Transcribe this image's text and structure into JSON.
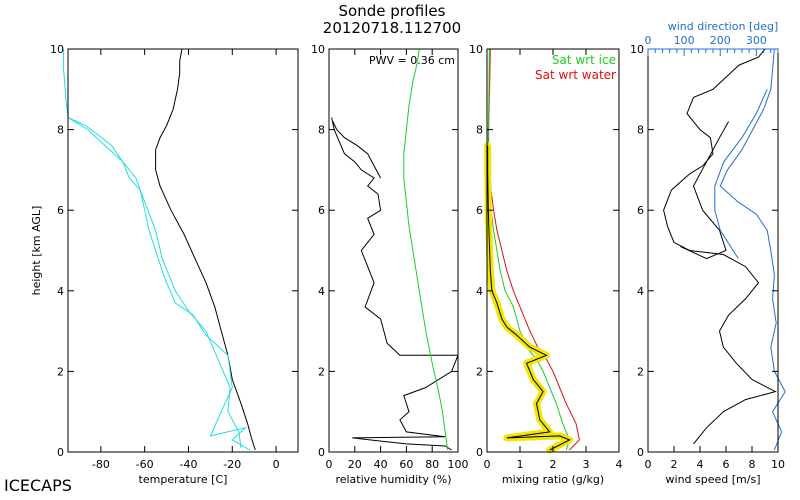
{
  "title_line1": "Sonde profiles",
  "title_line2": "20120718.112700",
  "footer_label": "ICECAPS",
  "colors": {
    "black": "#000000",
    "cyan": "#22dddd",
    "green": "#22cc22",
    "red": "#dd1111",
    "blue": "#1f6fd0",
    "highlight": "#f2e600"
  },
  "chart_data": [
    {
      "type": "line",
      "id": "temperature",
      "xlabel": "temperature [C]",
      "ylabel": "height [km AGL]",
      "xlim": [
        -95,
        10
      ],
      "ylim": [
        0,
        10
      ],
      "xticks": [
        -80,
        -60,
        -40,
        -20,
        0
      ],
      "yticks": [
        0,
        2,
        4,
        6,
        8,
        10
      ],
      "series": [
        {
          "color": "#000000",
          "x": [
            -9.5,
            -11,
            -13,
            -16,
            -20,
            -22,
            -25,
            -28,
            -32,
            -37,
            -42,
            -48,
            -53,
            -55,
            -55,
            -53,
            -50,
            -47,
            -45,
            -44,
            -44,
            -43
          ],
          "y": [
            0.05,
            0.3,
            0.7,
            1.2,
            1.8,
            2.4,
            3.0,
            3.6,
            4.2,
            4.8,
            5.4,
            6.0,
            6.6,
            7.0,
            7.5,
            7.8,
            8.1,
            8.5,
            9.0,
            9.4,
            9.7,
            10.0
          ]
        },
        {
          "color": "#22dddd",
          "x": [
            -12,
            -20,
            -14,
            -30,
            -25,
            -20,
            -22,
            -32,
            -38,
            -46,
            -50,
            -52,
            -55,
            -58,
            -60,
            -62,
            -67,
            -70,
            -75,
            -82,
            -87,
            -95,
            -96,
            -97,
            -97
          ],
          "y": [
            0.05,
            0.3,
            0.6,
            0.4,
            1.0,
            1.6,
            2.4,
            2.9,
            3.4,
            3.7,
            4.2,
            4.5,
            5.0,
            5.5,
            6.0,
            6.5,
            6.8,
            7.2,
            7.6,
            7.9,
            8.1,
            8.3,
            8.8,
            9.5,
            10.0
          ]
        },
        {
          "color": "#22dddd",
          "x": [
            -16,
            -17,
            -22,
            -21,
            -32,
            -40,
            -46,
            -52,
            -55,
            -60,
            -64,
            -70,
            -78,
            -86,
            -95
          ],
          "y": [
            0.1,
            0.5,
            1.0,
            1.6,
            3.0,
            3.5,
            4.0,
            4.8,
            5.5,
            6.2,
            6.8,
            7.2,
            7.6,
            8.0,
            8.3
          ]
        }
      ]
    },
    {
      "type": "line",
      "id": "relative_humidity",
      "xlabel": "relative humidity (%)",
      "annotation": "PWV = 0.36 cm",
      "xlim": [
        0,
        100
      ],
      "ylim": [
        0,
        10
      ],
      "xticks": [
        0,
        20,
        40,
        60,
        80,
        100
      ],
      "yticks": [
        0,
        2,
        4,
        6,
        8,
        10
      ],
      "series": [
        {
          "color": "#000000",
          "x": [
            95,
            90,
            60,
            18,
            90,
            60,
            55,
            62,
            58,
            75,
            95,
            100,
            55,
            45,
            40,
            28,
            35,
            30,
            25,
            35,
            30,
            40,
            38,
            30,
            35,
            25,
            20,
            12,
            8,
            4,
            2
          ],
          "y": [
            0.05,
            0.15,
            0.2,
            0.35,
            0.38,
            0.5,
            0.8,
            1.0,
            1.4,
            1.6,
            2.0,
            2.4,
            2.4,
            2.7,
            3.3,
            3.6,
            4.2,
            4.6,
            5.0,
            5.4,
            5.8,
            6.0,
            6.4,
            6.6,
            6.8,
            7.0,
            7.2,
            7.4,
            7.7,
            8.0,
            8.3
          ]
        },
        {
          "color": "#000000",
          "x": [
            40,
            35,
            30,
            22,
            12,
            6,
            3
          ],
          "y": [
            6.8,
            7.1,
            7.4,
            7.6,
            7.8,
            8.0,
            8.2
          ]
        },
        {
          "color": "#22cc22",
          "x": [
            92,
            90,
            88,
            85,
            80,
            75,
            72,
            68,
            65,
            62,
            60,
            58,
            58,
            60,
            62,
            65,
            68,
            70
          ],
          "y": [
            0.05,
            0.5,
            1.0,
            1.5,
            2.2,
            3.0,
            3.6,
            4.4,
            5.0,
            5.6,
            6.2,
            6.8,
            7.4,
            8.0,
            8.6,
            9.2,
            9.6,
            10.0
          ]
        }
      ]
    },
    {
      "type": "line",
      "id": "mixing_ratio",
      "xlabel": "mixing ratio (g/kg)",
      "xlim": [
        0,
        4
      ],
      "ylim": [
        0,
        10
      ],
      "xticks": [
        0,
        1,
        2,
        3,
        4
      ],
      "yticks": [
        0,
        2,
        4,
        6,
        8,
        10
      ],
      "legend": [
        {
          "label": "Sat wrt ice",
          "color": "#22cc22"
        },
        {
          "label": "Sat wrt water",
          "color": "#dd1111"
        }
      ],
      "series": [
        {
          "name": "Sat wrt water",
          "color": "#dd1111",
          "x": [
            2.5,
            2.8,
            2.7,
            2.4,
            2.2,
            2.0,
            1.8,
            1.6,
            1.3,
            1.0,
            0.8,
            0.6,
            0.45,
            0.3,
            0.2,
            0.12,
            0.08,
            0.05,
            0.05,
            0.06,
            0.08,
            0.1
          ],
          "y": [
            0.05,
            0.3,
            0.7,
            1.2,
            1.6,
            2.0,
            2.3,
            2.5,
            3.0,
            3.6,
            4.0,
            4.5,
            5.0,
            5.5,
            6.0,
            6.5,
            7.0,
            7.5,
            8.0,
            8.5,
            9.0,
            10.0
          ]
        },
        {
          "name": "Sat wrt ice",
          "color": "#22cc22",
          "x": [
            2.4,
            2.5,
            2.3,
            2.1,
            1.9,
            1.7,
            1.5,
            1.3,
            1.0,
            0.8,
            0.55,
            0.4,
            0.3,
            0.2,
            0.12,
            0.07,
            0.05,
            0.04,
            0.04,
            0.05,
            0.06,
            0.07
          ],
          "y": [
            0.05,
            0.3,
            0.7,
            1.2,
            1.6,
            2.0,
            2.3,
            2.5,
            3.0,
            3.6,
            4.0,
            4.5,
            5.0,
            5.5,
            6.0,
            6.5,
            7.0,
            7.5,
            8.0,
            8.5,
            9.0,
            10.0
          ]
        },
        {
          "name": "",
          "color": "#000000",
          "highlight": true,
          "x": [
            1.9,
            2.5,
            2.2,
            0.6,
            1.9,
            1.6,
            1.5,
            1.7,
            1.4,
            1.2,
            1.8,
            1.3,
            0.9,
            0.6,
            0.45,
            0.3,
            0.15,
            0.1,
            0.08,
            0.04,
            0.02,
            0.02
          ],
          "y": [
            0.05,
            0.3,
            0.4,
            0.35,
            0.5,
            0.8,
            1.2,
            1.5,
            1.8,
            2.2,
            2.4,
            2.6,
            2.9,
            3.1,
            3.3,
            3.7,
            4.0,
            4.5,
            5.0,
            6.0,
            7.0,
            7.6
          ]
        }
      ]
    },
    {
      "type": "line",
      "id": "wind",
      "xlabel": "wind speed [m/s]",
      "top_axis_label": "wind direction [deg]",
      "xlim": [
        0,
        10
      ],
      "top_xlim": [
        0,
        360
      ],
      "ylim": [
        0,
        10
      ],
      "xticks": [
        0,
        2,
        4,
        6,
        8,
        10
      ],
      "top_xticks": [
        0,
        100,
        200,
        300
      ],
      "yticks": [
        0,
        2,
        4,
        6,
        8,
        10
      ],
      "series": [
        {
          "color": "#000000",
          "axis": "speed",
          "x": [
            3.5,
            4.5,
            5.8,
            7.5,
            9.8,
            8.0,
            6.8,
            5.8,
            5.5,
            6.2,
            7.5,
            8.5,
            7.5,
            5.8,
            3.2,
            2.0,
            1.5,
            1.2,
            1.8,
            3.2,
            4.2,
            5.0,
            4.8,
            4.0,
            3.0,
            3.5,
            5.0,
            6.0,
            7.0,
            8.5,
            9.0
          ],
          "y": [
            0.2,
            0.6,
            1.0,
            1.3,
            1.5,
            1.8,
            2.2,
            2.6,
            3.0,
            3.4,
            3.8,
            4.2,
            4.6,
            4.9,
            5.0,
            5.2,
            5.6,
            6.0,
            6.5,
            6.9,
            7.1,
            7.4,
            7.8,
            8.0,
            8.4,
            8.8,
            9.0,
            9.3,
            9.6,
            9.8,
            10.0
          ]
        },
        {
          "color": "#000000",
          "axis": "speed",
          "x": [
            2.5,
            4.5,
            6.0,
            5.5,
            4.2,
            3.5,
            4.5,
            5.5,
            6.2
          ],
          "y": [
            5.1,
            4.8,
            5.0,
            5.5,
            6.0,
            6.6,
            7.2,
            7.8,
            8.2
          ]
        },
        {
          "color": "#1f6fd0",
          "axis": "direction",
          "x": [
            350,
            370,
            345,
            380,
            350,
            340,
            355,
            345,
            350,
            340,
            330,
            300,
            250,
            200,
            220,
            260,
            290,
            320,
            340,
            345,
            350
          ],
          "y": [
            0.05,
            0.5,
            1.0,
            1.5,
            2.0,
            2.6,
            3.2,
            3.8,
            4.4,
            5.0,
            5.5,
            5.9,
            6.2,
            6.6,
            7.0,
            7.5,
            8.0,
            8.5,
            9.0,
            9.5,
            10.0
          ]
        },
        {
          "color": "#1f6fd0",
          "axis": "direction",
          "x": [
            250,
            200,
            185,
            185,
            210,
            260,
            300,
            330
          ],
          "y": [
            4.8,
            5.5,
            6.0,
            6.6,
            7.2,
            7.8,
            8.4,
            9.0
          ]
        }
      ]
    }
  ]
}
